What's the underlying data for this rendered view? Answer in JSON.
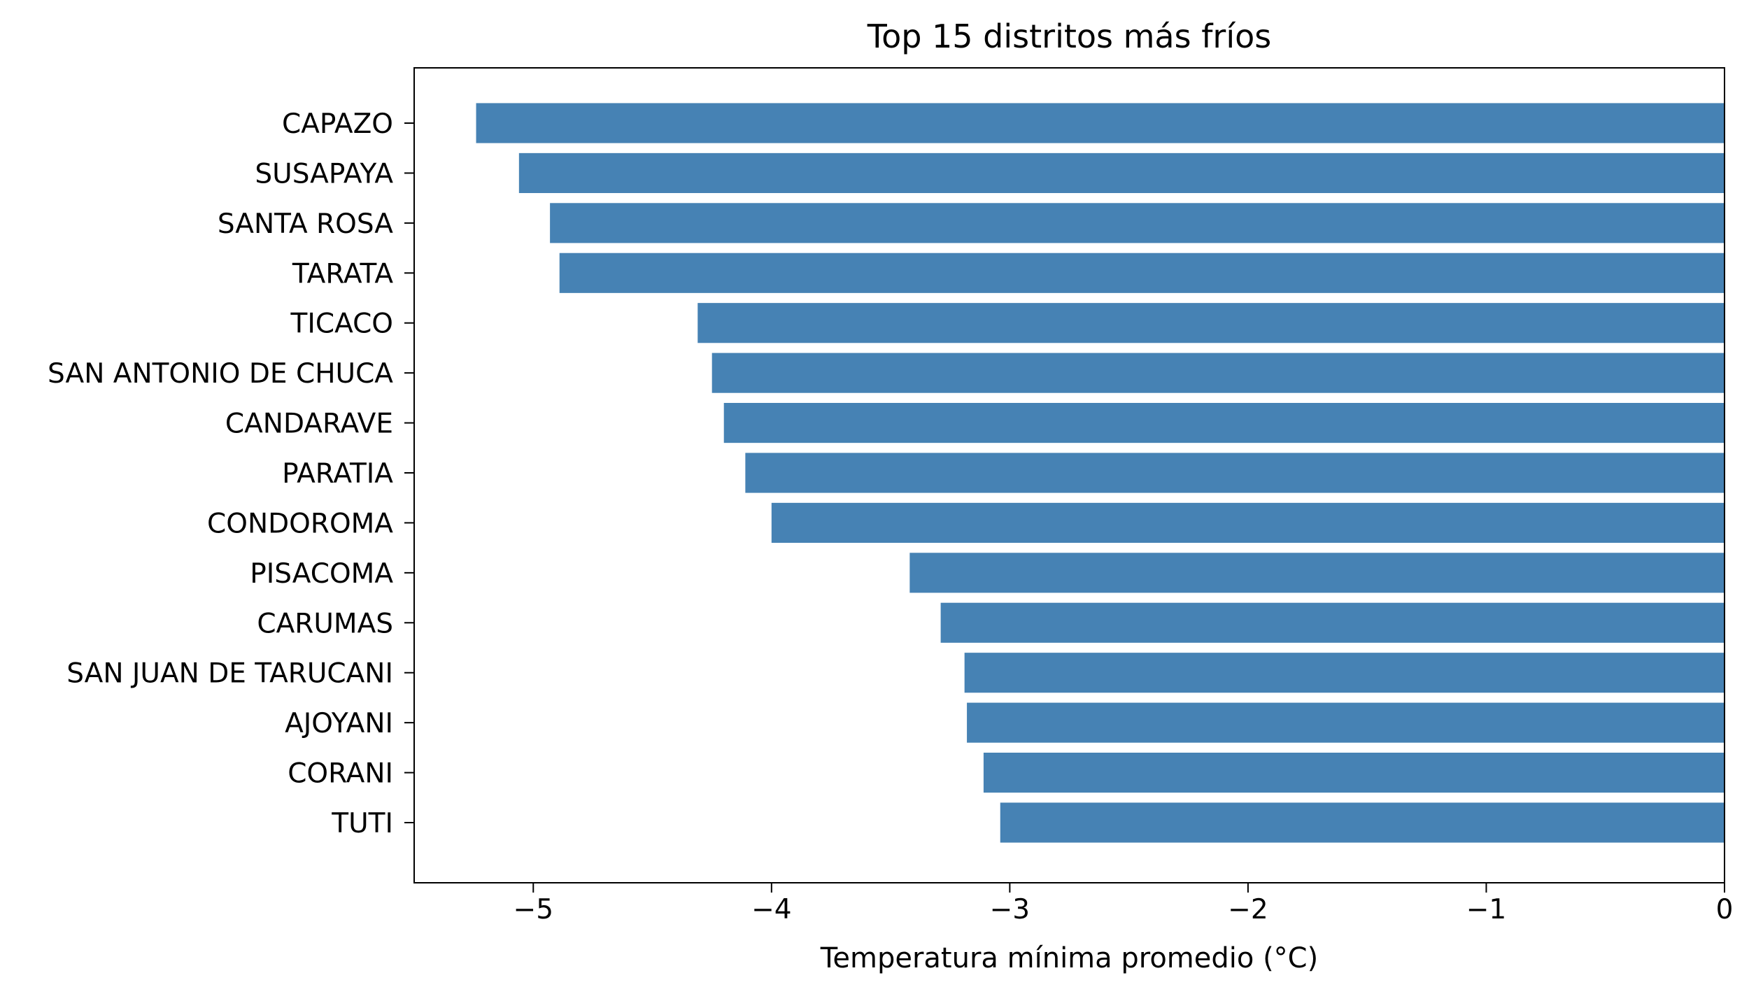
{
  "chart_data": {
    "type": "bar",
    "orientation": "horizontal",
    "title": "Top 15 distritos más fríos",
    "xlabel": "Temperatura mínima promedio (°C)",
    "ylabel": "",
    "xlim": [
      -5.5,
      0
    ],
    "xticks": [
      -5,
      -4,
      -3,
      -2,
      -1,
      0
    ],
    "xtick_labels": [
      "−5",
      "−4",
      "−3",
      "−2",
      "−1",
      "0"
    ],
    "grid": false,
    "bar_color": "#4682b4",
    "categories": [
      "CAPAZO",
      "SUSAPAYA",
      "SANTA ROSA",
      "TARATA",
      "TICACO",
      "SAN ANTONIO DE CHUCA",
      "CANDARAVE",
      "PARATIA",
      "CONDOROMA",
      "PISACOMA",
      "CARUMAS",
      "SAN JUAN DE TARUCANI",
      "AJOYANI",
      "CORANI",
      "TUTI"
    ],
    "values": [
      -5.24,
      -5.06,
      -4.93,
      -4.89,
      -4.31,
      -4.25,
      -4.2,
      -4.11,
      -4.0,
      -3.42,
      -3.29,
      -3.19,
      -3.18,
      -3.11,
      -3.04
    ]
  }
}
